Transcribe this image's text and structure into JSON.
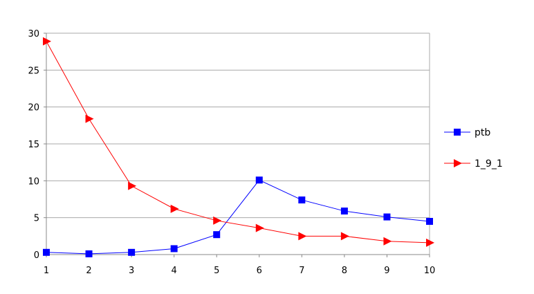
{
  "chart_data": {
    "type": "line",
    "x": [
      1,
      2,
      3,
      4,
      5,
      6,
      7,
      8,
      9,
      10
    ],
    "series": [
      {
        "name": "ptb",
        "color": "#0000ff",
        "marker": "square",
        "values": [
          0.3,
          0.1,
          0.3,
          0.8,
          2.7,
          10.1,
          7.4,
          5.9,
          5.1,
          4.5
        ]
      },
      {
        "name": "1_9_1",
        "color": "#ff0000",
        "marker": "triangle-right",
        "values": [
          28.9,
          18.4,
          9.3,
          6.2,
          4.6,
          3.6,
          2.5,
          2.5,
          1.8,
          1.6
        ]
      }
    ],
    "xlim": [
      1,
      10
    ],
    "ylim": [
      0,
      30
    ],
    "yticks": [
      0,
      5,
      10,
      15,
      20,
      25,
      30
    ],
    "xticks": [
      1,
      2,
      3,
      4,
      5,
      6,
      7,
      8,
      9,
      10
    ],
    "grid": "horizontal",
    "legend_position": "right",
    "gridline_color": "#aaaaaa",
    "axis_color": "#888888"
  }
}
